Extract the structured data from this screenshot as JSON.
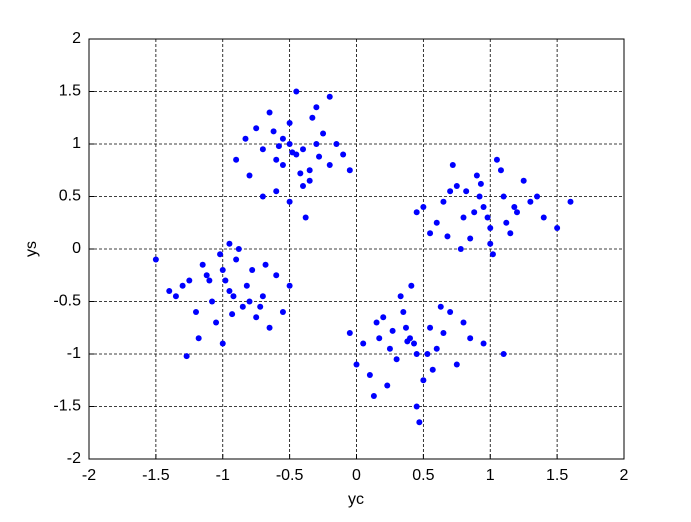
{
  "chart_data": {
    "type": "scatter",
    "xlabel": "yc",
    "ylabel": "ys",
    "xlim": [
      -2,
      2
    ],
    "ylim": [
      -2,
      2
    ],
    "xticks": [
      -2,
      -1.5,
      -1,
      -0.5,
      0,
      0.5,
      1,
      1.5,
      2
    ],
    "yticks": [
      -2,
      -1.5,
      -1,
      -0.5,
      0,
      0.5,
      1,
      1.5,
      2
    ],
    "grid": true,
    "color": "#0000ff",
    "x": [
      -0.45,
      -0.3,
      -0.6,
      -0.5,
      -0.35,
      -0.7,
      -0.2,
      -0.55,
      -0.4,
      -0.65,
      -0.25,
      -0.8,
      -0.1,
      -0.5,
      -0.45,
      -0.3,
      -0.6,
      -0.15,
      -0.75,
      -0.4,
      -0.55,
      -0.35,
      -0.9,
      -0.05,
      -0.5,
      -0.28,
      -0.62,
      -0.42,
      -0.2,
      -0.7,
      -0.48,
      -0.33,
      -0.58,
      -0.38,
      -0.83,
      0.95,
      1.1,
      0.8,
      1.0,
      0.7,
      1.2,
      0.9,
      1.3,
      0.6,
      1.05,
      0.85,
      1.4,
      0.75,
      1.15,
      0.5,
      1.0,
      0.92,
      1.25,
      0.65,
      1.5,
      0.88,
      1.08,
      0.78,
      1.35,
      0.55,
      0.98,
      1.18,
      0.72,
      1.02,
      1.6,
      0.82,
      0.45,
      1.12,
      0.93,
      0.68,
      -0.95,
      -1.1,
      -0.8,
      -1.0,
      -0.7,
      -1.2,
      -0.9,
      -1.3,
      -0.6,
      -1.05,
      -0.85,
      -1.4,
      -0.75,
      -1.15,
      -0.5,
      -1.0,
      -0.92,
      -1.25,
      -0.65,
      -1.5,
      -0.88,
      -1.08,
      -0.78,
      -1.35,
      -0.55,
      -0.98,
      -1.18,
      -0.72,
      -1.02,
      -1.27,
      -0.82,
      -0.95,
      -1.12,
      -0.93,
      -0.68,
      0.4,
      0.55,
      0.25,
      0.45,
      0.15,
      0.65,
      0.35,
      0.75,
      0.05,
      0.5,
      0.3,
      0.85,
      0.2,
      0.6,
      -0.05,
      0.45,
      0.37,
      0.7,
      0.1,
      0.95,
      0.33,
      0.53,
      0.23,
      0.8,
      0.0,
      0.43,
      0.63,
      0.17,
      0.47,
      1.1,
      0.27,
      0.41,
      0.57,
      0.38,
      0.13
    ],
    "y": [
      0.9,
      1.0,
      0.85,
      1.2,
      0.75,
      0.95,
      0.8,
      1.05,
      0.6,
      1.3,
      1.1,
      0.7,
      0.9,
      0.45,
      1.5,
      1.35,
      0.55,
      1.0,
      1.15,
      0.95,
      0.8,
      0.65,
      0.85,
      0.75,
      1.0,
      0.88,
      1.12,
      0.72,
      1.45,
      0.5,
      0.92,
      1.25,
      0.98,
      0.3,
      1.05,
      0.4,
      0.5,
      0.3,
      0.2,
      0.55,
      0.35,
      0.7,
      0.45,
      0.25,
      0.85,
      0.1,
      0.3,
      0.6,
      0.15,
      0.4,
      0.05,
      0.5,
      0.65,
      0.45,
      0.2,
      0.35,
      0.75,
      0.0,
      0.5,
      0.15,
      0.3,
      0.4,
      0.8,
      -0.05,
      0.45,
      0.55,
      0.35,
      0.25,
      0.62,
      0.12,
      -0.4,
      -0.3,
      -0.5,
      -0.2,
      -0.45,
      -0.6,
      -0.1,
      -0.35,
      -0.25,
      -0.7,
      -0.55,
      -0.4,
      -0.65,
      -0.15,
      -0.35,
      -0.9,
      -0.45,
      -0.3,
      -0.75,
      -0.1,
      0.0,
      -0.5,
      -0.2,
      -0.45,
      -0.6,
      -0.3,
      -0.85,
      -0.55,
      -0.05,
      -1.02,
      -0.35,
      0.05,
      -0.25,
      -0.62,
      -0.15,
      -0.85,
      -0.75,
      -0.95,
      -1.0,
      -0.7,
      -0.8,
      -0.6,
      -1.1,
      -0.9,
      -1.25,
      -1.05,
      -0.85,
      -0.65,
      -0.95,
      -0.8,
      -1.5,
      -0.75,
      -0.6,
      -1.2,
      -0.9,
      -0.45,
      -1.0,
      -1.3,
      -0.7,
      -1.1,
      -0.9,
      -0.55,
      -0.85,
      -1.65,
      -1.0,
      -0.78,
      -0.35,
      -1.15,
      -0.88,
      -1.4
    ]
  }
}
